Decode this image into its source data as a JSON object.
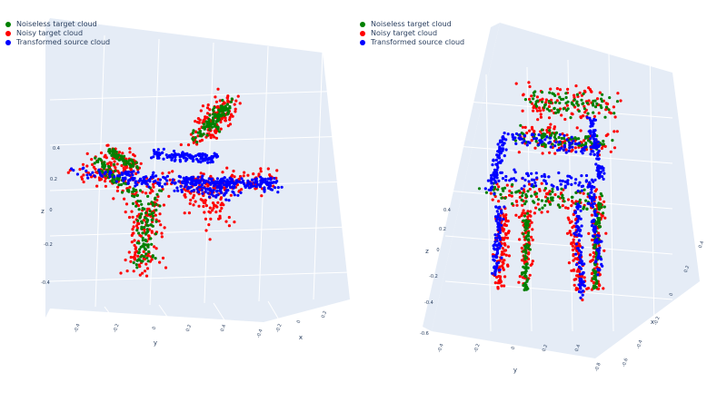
{
  "colors": {
    "pane": "#e5ecf6",
    "grid": "#ffffff",
    "green": "#008000",
    "red": "#ff0000",
    "blue": "#0000ff"
  },
  "legend": {
    "noiseless": "Noiseless target cloud",
    "noisy": "Noisy target cloud",
    "transformed": "Transformed source cloud"
  },
  "chart_data": [
    {
      "type": "scatter",
      "subtype": "3d",
      "shape": "airplane",
      "legend_placement": "top-left",
      "series": [
        {
          "name": "Noiseless target cloud",
          "color": "#008000"
        },
        {
          "name": "Noisy target cloud",
          "color": "#ff0000"
        },
        {
          "name": "Transformed source cloud",
          "color": "#0000ff"
        }
      ],
      "axes": {
        "x": {
          "title": "x",
          "ticks": [
            "0.2",
            "0",
            "-0.2",
            "-0.4"
          ]
        },
        "y": {
          "title": "y",
          "ticks": [
            "-0.4",
            "-0.2",
            "0",
            "0.2",
            "0.4"
          ]
        },
        "z": {
          "title": "z",
          "ticks": [
            "0.4",
            "0.2",
            "0",
            "-0.2",
            "-0.4"
          ]
        }
      }
    },
    {
      "type": "scatter",
      "subtype": "3d",
      "shape": "chair",
      "legend_placement": "top-left",
      "series": [
        {
          "name": "Noiseless target cloud",
          "color": "#008000"
        },
        {
          "name": "Noisy target cloud",
          "color": "#ff0000"
        },
        {
          "name": "Transformed source cloud",
          "color": "#0000ff"
        }
      ],
      "axes": {
        "x": {
          "title": "x",
          "ticks": [
            "0.4",
            "0.2",
            "0",
            "-0.2",
            "-0.4",
            "-0.6",
            "-0.8"
          ]
        },
        "y": {
          "title": "y",
          "ticks": [
            "-0.4",
            "-0.2",
            "0",
            "0.2",
            "0.4"
          ]
        },
        "z": {
          "title": "z",
          "ticks": [
            "0.4",
            "0.2",
            "0",
            "-0.2",
            "-0.4",
            "-0.6"
          ]
        }
      }
    }
  ]
}
